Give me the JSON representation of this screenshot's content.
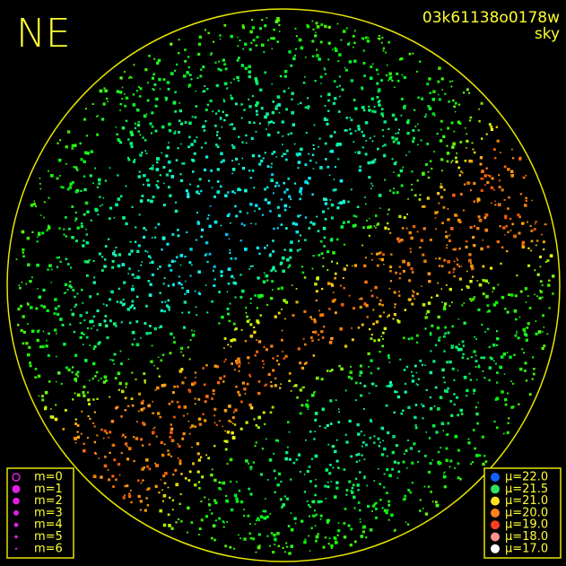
{
  "header": {
    "corner": "NE",
    "image_id": "03k61138o0178w",
    "mode": "sky"
  },
  "magnitude_legend": {
    "items": [
      "m=0",
      "m=1",
      "m=2",
      "m=3",
      "m=4",
      "m=5",
      "m=6"
    ]
  },
  "sky_legend": {
    "items": [
      "μ=22.0",
      "μ=21.5",
      "μ=21.0",
      "μ=20.0",
      "μ=19.0",
      "μ=18.0",
      "μ=17.0"
    ]
  }
}
